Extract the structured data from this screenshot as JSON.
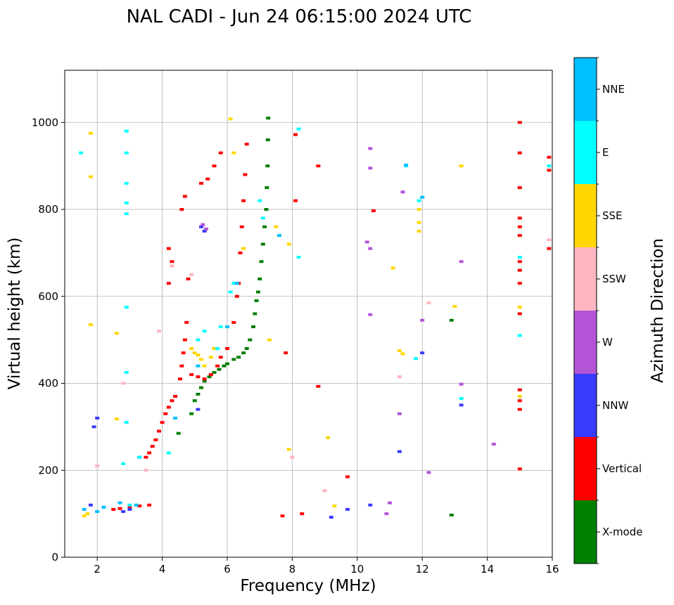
{
  "chart_data": {
    "type": "scatter",
    "title": "NAL CADI - Jun 24 06:15:00 2024 UTC",
    "xlabel": "Frequency (MHz)",
    "ylabel": "Virtual height (km)",
    "xlim": [
      1,
      16
    ],
    "ylim": [
      0,
      1120
    ],
    "xticks": [
      2,
      4,
      6,
      8,
      10,
      12,
      14,
      16
    ],
    "yticks": [
      0,
      200,
      400,
      600,
      800,
      1000
    ],
    "grid": true,
    "colorbar": {
      "label": "Azimuth Direction",
      "categories": [
        {
          "name": "X-mode",
          "color": "#008000"
        },
        {
          "name": "Vertical",
          "color": "#ff0000"
        },
        {
          "name": "NNW",
          "color": "#3a3aff"
        },
        {
          "name": "W",
          "color": "#b455d8"
        },
        {
          "name": "SSW",
          "color": "#ffb6c1"
        },
        {
          "name": "SSE",
          "color": "#ffd700"
        },
        {
          "name": "E",
          "color": "#00ffff"
        },
        {
          "name": "NNE",
          "color": "#00bfff"
        }
      ]
    },
    "series": [
      {
        "name": "X-mode",
        "points": [
          [
            4.5,
            285
          ],
          [
            4.9,
            330
          ],
          [
            5.0,
            360
          ],
          [
            5.1,
            375
          ],
          [
            5.2,
            390
          ],
          [
            5.3,
            405
          ],
          [
            5.45,
            415
          ],
          [
            5.6,
            425
          ],
          [
            5.75,
            432
          ],
          [
            5.9,
            440
          ],
          [
            6.0,
            445
          ],
          [
            6.2,
            455
          ],
          [
            6.35,
            460
          ],
          [
            6.5,
            470
          ],
          [
            6.6,
            480
          ],
          [
            6.7,
            500
          ],
          [
            6.8,
            530
          ],
          [
            6.85,
            560
          ],
          [
            6.9,
            590
          ],
          [
            6.95,
            610
          ],
          [
            7.0,
            640
          ],
          [
            7.05,
            680
          ],
          [
            7.1,
            720
          ],
          [
            7.15,
            760
          ],
          [
            7.2,
            800
          ],
          [
            7.22,
            850
          ],
          [
            7.24,
            900
          ],
          [
            7.25,
            960
          ],
          [
            7.26,
            1010
          ],
          [
            12.9,
            545
          ],
          [
            12.9,
            97
          ]
        ]
      },
      {
        "name": "Vertical",
        "points": [
          [
            2.5,
            110
          ],
          [
            2.7,
            112
          ],
          [
            3.0,
            115
          ],
          [
            3.3,
            118
          ],
          [
            3.6,
            120
          ],
          [
            3.5,
            230
          ],
          [
            3.6,
            240
          ],
          [
            3.7,
            255
          ],
          [
            3.8,
            270
          ],
          [
            3.9,
            290
          ],
          [
            4.0,
            310
          ],
          [
            4.1,
            330
          ],
          [
            4.2,
            345
          ],
          [
            4.3,
            360
          ],
          [
            4.4,
            370
          ],
          [
            4.55,
            410
          ],
          [
            4.6,
            440
          ],
          [
            4.65,
            470
          ],
          [
            4.7,
            500
          ],
          [
            4.75,
            540
          ],
          [
            4.9,
            420
          ],
          [
            5.1,
            415
          ],
          [
            5.3,
            410
          ],
          [
            5.5,
            420
          ],
          [
            5.7,
            440
          ],
          [
            5.8,
            460
          ],
          [
            6.0,
            480
          ],
          [
            6.2,
            540
          ],
          [
            6.3,
            600
          ],
          [
            6.35,
            630
          ],
          [
            6.4,
            700
          ],
          [
            6.45,
            760
          ],
          [
            6.5,
            820
          ],
          [
            6.55,
            880
          ],
          [
            6.6,
            950
          ],
          [
            4.6,
            800
          ],
          [
            4.7,
            830
          ],
          [
            5.2,
            860
          ],
          [
            5.4,
            870
          ],
          [
            5.6,
            900
          ],
          [
            5.8,
            930
          ],
          [
            4.2,
            710
          ],
          [
            4.3,
            680
          ],
          [
            4.2,
            630
          ],
          [
            4.8,
            640
          ],
          [
            8.3,
            100
          ],
          [
            7.7,
            95
          ],
          [
            9.7,
            185
          ],
          [
            8.1,
            972
          ],
          [
            8.8,
            900
          ],
          [
            8.1,
            820
          ],
          [
            7.8,
            470
          ],
          [
            8.8,
            393
          ],
          [
            15.0,
            203
          ],
          [
            15.0,
            340
          ],
          [
            15.0,
            360
          ],
          [
            15.0,
            385
          ],
          [
            15.0,
            560
          ],
          [
            15.0,
            630
          ],
          [
            15.0,
            660
          ],
          [
            15.0,
            680
          ],
          [
            15.0,
            740
          ],
          [
            15.0,
            760
          ],
          [
            15.0,
            780
          ],
          [
            15.0,
            850
          ],
          [
            15.0,
            930
          ],
          [
            15.0,
            1000
          ],
          [
            15.9,
            710
          ],
          [
            15.9,
            890
          ],
          [
            15.9,
            920
          ],
          [
            10.5,
            797
          ]
        ]
      },
      {
        "name": "NNW",
        "points": [
          [
            1.8,
            120
          ],
          [
            1.9,
            300
          ],
          [
            2.0,
            320
          ],
          [
            2.8,
            105
          ],
          [
            3.0,
            110
          ],
          [
            3.3,
            230
          ],
          [
            5.2,
            760
          ],
          [
            5.3,
            750
          ],
          [
            5.1,
            340
          ],
          [
            9.7,
            110
          ],
          [
            9.2,
            92
          ],
          [
            11.3,
            243
          ],
          [
            12.0,
            470
          ],
          [
            13.2,
            350
          ],
          [
            10.4,
            120
          ]
        ]
      },
      {
        "name": "W",
        "points": [
          [
            5.25,
            765
          ],
          [
            5.35,
            755
          ],
          [
            10.4,
            940
          ],
          [
            10.4,
            895
          ],
          [
            10.3,
            725
          ],
          [
            10.4,
            710
          ],
          [
            10.4,
            558
          ],
          [
            11.0,
            125
          ],
          [
            10.9,
            100
          ],
          [
            11.4,
            840
          ],
          [
            11.3,
            330
          ],
          [
            12.0,
            545
          ],
          [
            12.2,
            195
          ],
          [
            13.2,
            680
          ],
          [
            13.2,
            398
          ],
          [
            14.2,
            260
          ]
        ]
      },
      {
        "name": "SSW",
        "points": [
          [
            2.0,
            210
          ],
          [
            2.8,
            400
          ],
          [
            3.5,
            200
          ],
          [
            4.3,
            670
          ],
          [
            4.9,
            650
          ],
          [
            8.0,
            230
          ],
          [
            9.0,
            153
          ],
          [
            11.3,
            415
          ],
          [
            12.2,
            585
          ],
          [
            15.9,
            730
          ],
          [
            3.9,
            520
          ]
        ]
      },
      {
        "name": "SSE",
        "points": [
          [
            1.6,
            95
          ],
          [
            1.7,
            100
          ],
          [
            1.8,
            975
          ],
          [
            1.8,
            875
          ],
          [
            1.8,
            535
          ],
          [
            2.6,
            515
          ],
          [
            2.6,
            318
          ],
          [
            4.9,
            480
          ],
          [
            5.0,
            470
          ],
          [
            5.1,
            465
          ],
          [
            5.2,
            455
          ],
          [
            5.3,
            440
          ],
          [
            5.5,
            460
          ],
          [
            5.6,
            480
          ],
          [
            6.1,
            1008
          ],
          [
            6.2,
            930
          ],
          [
            6.5,
            710
          ],
          [
            7.3,
            500
          ],
          [
            7.5,
            760
          ],
          [
            7.9,
            720
          ],
          [
            7.9,
            248
          ],
          [
            9.1,
            275
          ],
          [
            9.3,
            118
          ],
          [
            11.1,
            665
          ],
          [
            11.3,
            475
          ],
          [
            11.4,
            468
          ],
          [
            11.9,
            750
          ],
          [
            11.9,
            770
          ],
          [
            11.9,
            800
          ],
          [
            13.0,
            577
          ],
          [
            13.2,
            900
          ],
          [
            15.0,
            575
          ],
          [
            15.0,
            370
          ]
        ]
      },
      {
        "name": "E",
        "points": [
          [
            1.5,
            930
          ],
          [
            2.9,
            980
          ],
          [
            2.9,
            930
          ],
          [
            2.9,
            860
          ],
          [
            2.9,
            815
          ],
          [
            2.9,
            790
          ],
          [
            2.9,
            575
          ],
          [
            2.9,
            425
          ],
          [
            2.9,
            310
          ],
          [
            2.8,
            215
          ],
          [
            3.0,
            120
          ],
          [
            3.3,
            230
          ],
          [
            4.2,
            240
          ],
          [
            5.1,
            500
          ],
          [
            5.3,
            520
          ],
          [
            5.7,
            480
          ],
          [
            5.8,
            530
          ],
          [
            6.2,
            630
          ],
          [
            6.1,
            610
          ],
          [
            7.0,
            820
          ],
          [
            7.1,
            780
          ],
          [
            8.2,
            985
          ],
          [
            8.2,
            690
          ],
          [
            11.5,
            900
          ],
          [
            11.8,
            457
          ],
          [
            11.9,
            820
          ],
          [
            13.2,
            365
          ],
          [
            15.0,
            510
          ],
          [
            15.0,
            690
          ],
          [
            15.9,
            900
          ]
        ]
      },
      {
        "name": "NNE",
        "points": [
          [
            1.6,
            110
          ],
          [
            2.0,
            105
          ],
          [
            2.2,
            115
          ],
          [
            2.7,
            125
          ],
          [
            3.2,
            120
          ],
          [
            4.4,
            320
          ],
          [
            5.1,
            440
          ],
          [
            6.0,
            530
          ],
          [
            6.3,
            630
          ],
          [
            7.6,
            740
          ],
          [
            11.5,
            902
          ],
          [
            12.0,
            828
          ]
        ]
      }
    ]
  }
}
